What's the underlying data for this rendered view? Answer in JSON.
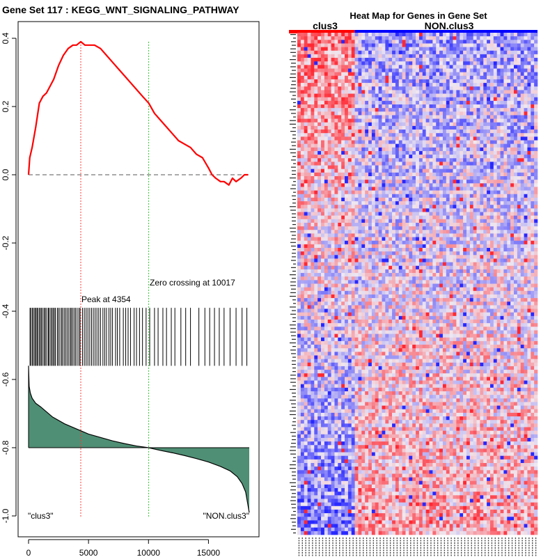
{
  "chart_data": [
    {
      "type": "line",
      "title": "Gene Set  117 : KEGG_WNT_SIGNALING_PATHWAY",
      "xlim": [
        0,
        18400
      ],
      "ylim": [
        -1.0,
        0.4
      ],
      "x_ticks": [
        "0",
        "5000",
        "10000",
        "15000"
      ],
      "x_tick_values": [
        0,
        5000,
        10000,
        15000
      ],
      "y_ticks": [
        "0.4",
        "0.2",
        "0.0",
        "-0.2",
        "-0.4",
        "-0.6",
        "-0.8",
        "-1.0"
      ],
      "y_tick_values": [
        0.4,
        0.2,
        0.0,
        -0.2,
        -0.4,
        -0.6,
        -0.8,
        -1.0
      ],
      "series": [
        {
          "color": "#ff0000",
          "x": [
            0,
            100,
            300,
            600,
            900,
            1200,
            1500,
            1800,
            2100,
            2500,
            2900,
            3300,
            3700,
            4000,
            4354,
            4700,
            5000,
            5500,
            6000,
            6500,
            7000,
            7500,
            8000,
            8500,
            9000,
            9500,
            10017,
            10500,
            11000,
            11500,
            12000,
            12500,
            13000,
            13500,
            14000,
            14500,
            15000,
            15300,
            15600,
            16000,
            16300,
            16700,
            17000,
            17300,
            17700,
            18000,
            18300
          ],
          "y": [
            0.0,
            0.05,
            0.08,
            0.14,
            0.21,
            0.23,
            0.24,
            0.26,
            0.28,
            0.32,
            0.35,
            0.37,
            0.38,
            0.38,
            0.39,
            0.38,
            0.38,
            0.38,
            0.37,
            0.35,
            0.33,
            0.31,
            0.29,
            0.27,
            0.25,
            0.23,
            0.21,
            0.18,
            0.16,
            0.14,
            0.12,
            0.1,
            0.09,
            0.08,
            0.06,
            0.05,
            0.02,
            0.0,
            -0.01,
            -0.02,
            -0.02,
            -0.03,
            -0.01,
            -0.02,
            -0.01,
            0.0,
            0.0
          ]
        }
      ],
      "baseline": 0.0,
      "peak_x": 4354,
      "zero_crossing_x": 10017,
      "annotations": {
        "peak": "Peak at 4354",
        "zero": "Zero crossing at 10017",
        "left_label": "\"clus3\"",
        "right_label": "\"NON.clus3\""
      },
      "hit_positions": [
        120,
        200,
        320,
        410,
        520,
        600,
        700,
        780,
        900,
        1000,
        1080,
        1200,
        1320,
        1400,
        1520,
        1650,
        1720,
        1850,
        1950,
        2050,
        2150,
        2240,
        2400,
        2500,
        2620,
        2760,
        2850,
        2980,
        3100,
        3220,
        3350,
        3480,
        3560,
        3680,
        3800,
        3920,
        4050,
        4200,
        4300,
        4500,
        4650,
        4800,
        4950,
        5100,
        5250,
        5400,
        5550,
        5700,
        5850,
        6000,
        6200,
        6350,
        6500,
        6700,
        6850,
        7000,
        7250,
        7400,
        7600,
        7900,
        8100,
        8300,
        8500,
        8800,
        9000,
        9250,
        9500,
        9800,
        10100,
        10500,
        10800,
        11200,
        11500,
        11900,
        12200,
        12700,
        13100,
        13500,
        14200,
        14700,
        15100,
        15500,
        15900,
        16300,
        16800,
        17300,
        17800,
        18200
      ],
      "hits_y_range": [
        -0.56,
        -0.39
      ],
      "ranked_metric": {
        "color": "#4f8f75",
        "fill_from": -0.8,
        "x": [
          0,
          50,
          150,
          300,
          600,
          1000,
          1500,
          2000,
          3000,
          4000,
          5000,
          6000,
          7000,
          8000,
          9000,
          10000,
          11000,
          12000,
          13000,
          14000,
          15000,
          16000,
          16800,
          17400,
          17800,
          18100,
          18300,
          18400
        ],
        "y": [
          -0.56,
          -0.62,
          -0.64,
          -0.655,
          -0.67,
          -0.68,
          -0.695,
          -0.71,
          -0.73,
          -0.745,
          -0.76,
          -0.77,
          -0.78,
          -0.788,
          -0.795,
          -0.8,
          -0.808,
          -0.815,
          -0.823,
          -0.832,
          -0.842,
          -0.855,
          -0.868,
          -0.885,
          -0.905,
          -0.93,
          -0.97,
          -0.99
        ]
      }
    },
    {
      "type": "heatmap",
      "title": "Heat Map for Genes in Gene Set",
      "group_labels": [
        "clus3",
        "NON.clus3"
      ],
      "group_colors": [
        "#ff0000",
        "#0000ff"
      ],
      "n_clus3_cols": 17,
      "n_nonclus3_cols": 54,
      "n_rows": 140,
      "colors": {
        "high": "#ff2020",
        "low": "#2020ff",
        "mid": "#f0e8f0"
      }
    }
  ]
}
